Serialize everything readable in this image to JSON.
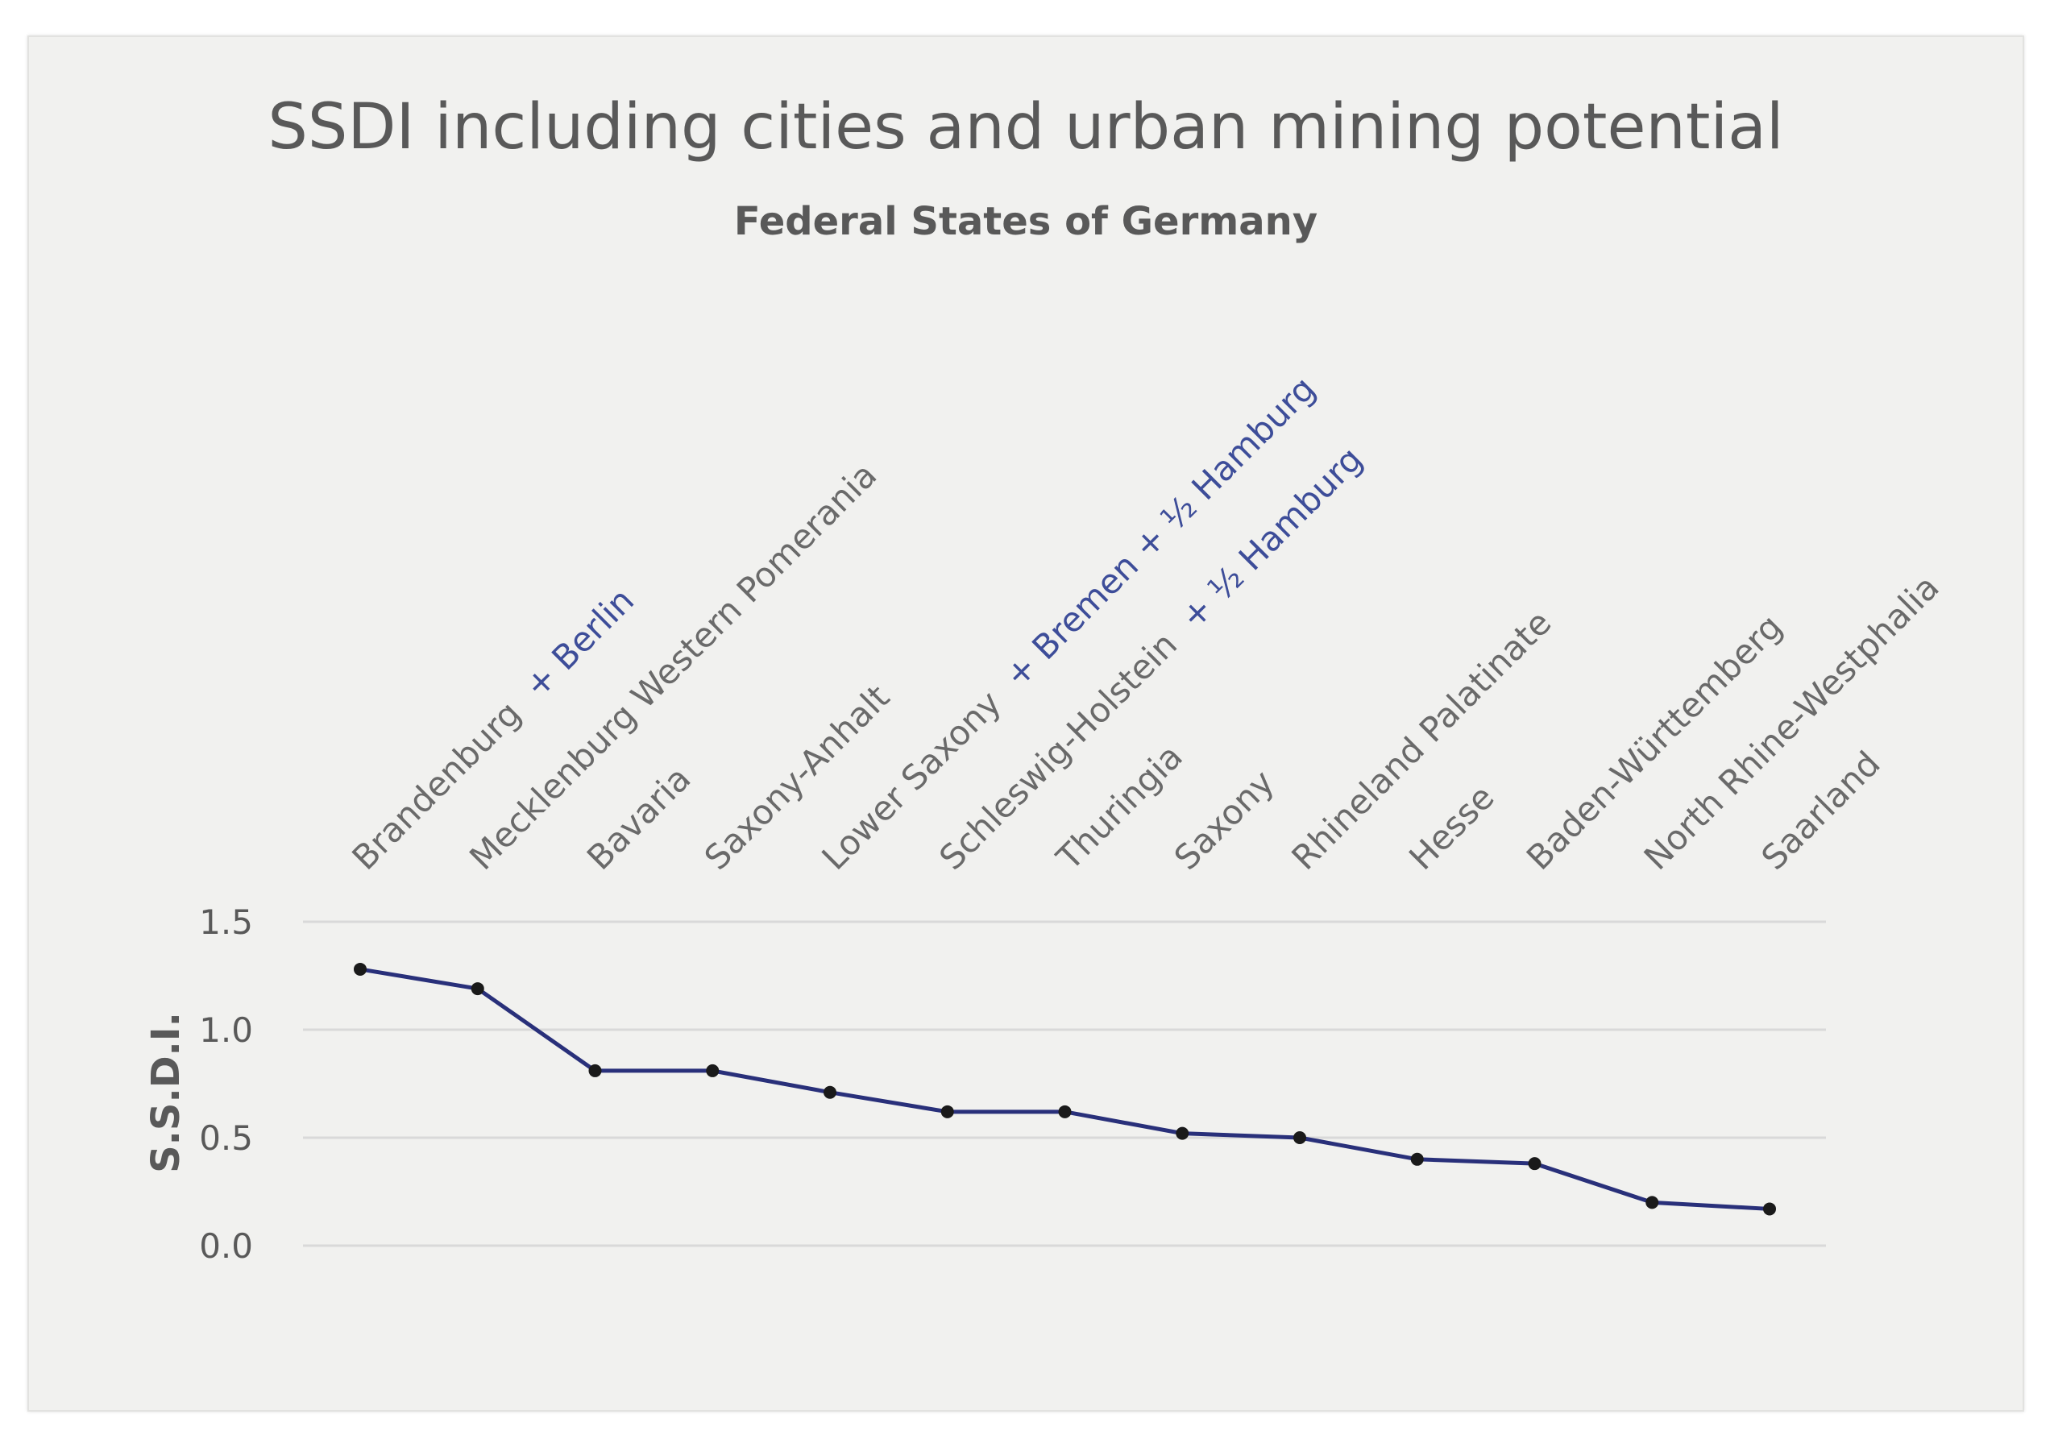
{
  "chart_data": {
    "type": "line",
    "title": "SSDI including cities and urban mining potential",
    "subtitle": "Federal States of Germany",
    "ylabel": "S.S.D.I.",
    "xlabel": "",
    "ylim": [
      0,
      1.5
    ],
    "y_ticks": [
      "0.0",
      "0.5",
      "1.0",
      "1.5"
    ],
    "y_tick_values": [
      0,
      0.5,
      1.0,
      1.5
    ],
    "grid": true,
    "legend": "none",
    "line_color": "#29307a",
    "marker_color": "#1a1a1a",
    "suffix_color": "#3d4d99",
    "categories": [
      {
        "name": "Brandenburg",
        "suffix": "+ Berlin"
      },
      {
        "name": "Mecklenburg Western Pomerania",
        "suffix": ""
      },
      {
        "name": "Bavaria",
        "suffix": ""
      },
      {
        "name": "Saxony-Anhalt",
        "suffix": ""
      },
      {
        "name": "Lower Saxony",
        "suffix": "+ Bremen + ½ Hamburg"
      },
      {
        "name": "Schleswig-Holstein",
        "suffix": "+ ½ Hamburg"
      },
      {
        "name": "Thuringia",
        "suffix": ""
      },
      {
        "name": "Saxony",
        "suffix": ""
      },
      {
        "name": "Rhineland Palatinate",
        "suffix": ""
      },
      {
        "name": "Hesse",
        "suffix": ""
      },
      {
        "name": "Baden-Württemberg",
        "suffix": ""
      },
      {
        "name": "North Rhine-Westphalia",
        "suffix": ""
      },
      {
        "name": "Saarland",
        "suffix": ""
      }
    ],
    "series": [
      {
        "values": [
          1.28,
          1.19,
          0.81,
          0.81,
          0.71,
          0.62,
          0.62,
          0.52,
          0.5,
          0.4,
          0.38,
          0.2,
          0.17
        ]
      }
    ]
  }
}
